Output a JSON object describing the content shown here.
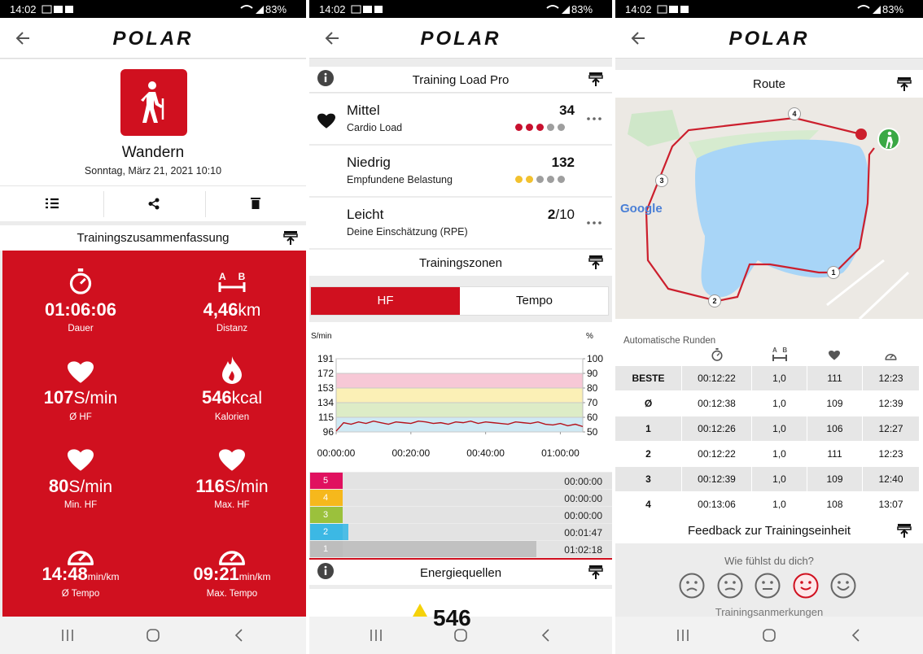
{
  "status_bar": {
    "time": "14:02",
    "battery": "83%"
  },
  "brand": "POLAR",
  "summary_screen": {
    "sport": "Wandern",
    "date": "Sonntag, März 21, 2021 10:10",
    "section": "Trainingszusammenfassung",
    "distance_icon": [
      "A",
      "B"
    ],
    "stats": [
      {
        "value": "01:06:06",
        "label": "Dauer"
      },
      {
        "value": "4,46",
        "unit": "km",
        "label": "Distanz"
      },
      {
        "value": "107",
        "unit": "S/min",
        "label": "Ø HF"
      },
      {
        "value": "546",
        "unit": "kcal",
        "label": "Kalorien"
      },
      {
        "value": "80",
        "unit": "S/min",
        "label": "Min. HF"
      },
      {
        "value": "116",
        "unit": "S/min",
        "label": "Max. HF"
      },
      {
        "value": "14:48",
        "unit": "min/km",
        "label": "Ø Tempo"
      },
      {
        "value": "09:21",
        "unit": "min/km",
        "label": "Max. Tempo"
      }
    ]
  },
  "load_screen": {
    "section": "Training Load Pro",
    "loads": [
      {
        "level": "Mittel",
        "name": "Cardio Load",
        "value": 34,
        "dots": [
          "#c8102e",
          "#c8102e",
          "#c8102e",
          "#9e9e9e",
          "#9e9e9e"
        ]
      },
      {
        "level": "Niedrig",
        "name": "Empfundene Belastung",
        "value": 132,
        "dots": [
          "#f2c12e",
          "#f2c12e",
          "#9e9e9e",
          "#9e9e9e",
          "#9e9e9e"
        ]
      },
      {
        "level": "Leicht",
        "name": "Deine Einschätzung (RPE)",
        "value": 2,
        "suffix": "/10"
      }
    ],
    "zones_section": "Trainingszonen",
    "tabs": [
      "HF",
      "Tempo"
    ],
    "chart_data": {
      "type": "line",
      "y_label": "S/min",
      "y2_label": "%",
      "ylim": [
        96,
        191
      ],
      "yticks": [
        96,
        115,
        134,
        153,
        172,
        191
      ],
      "y2lim": [
        50,
        100
      ],
      "y2ticks": [
        50,
        60,
        70,
        80,
        90,
        100
      ],
      "band_colors": [
        "#ffffff",
        "#cfe9f4",
        "#ddecc6",
        "#fbf0b6",
        "#f7c8d6"
      ],
      "xlim": [
        0,
        66
      ],
      "xticks": [
        {
          "value": 0,
          "label": "00:00:00"
        },
        {
          "value": 20,
          "label": "00:20:00"
        },
        {
          "value": 40,
          "label": "00:40:00"
        },
        {
          "value": 60,
          "label": "01:00:00"
        }
      ],
      "x": [
        0,
        2,
        4,
        6,
        8,
        10,
        12,
        14,
        16,
        18,
        20,
        22,
        24,
        26,
        28,
        30,
        32,
        34,
        36,
        38,
        40,
        42,
        44,
        46,
        48,
        50,
        52,
        54,
        56,
        58,
        60,
        62,
        64,
        66
      ],
      "series": [
        {
          "color": "#b5121b",
          "values": [
            97,
            108,
            106,
            109,
            107,
            110,
            108,
            106,
            109,
            108,
            107,
            110,
            109,
            107,
            108,
            106,
            109,
            108,
            110,
            107,
            109,
            108,
            107,
            106,
            109,
            108,
            107,
            109,
            106,
            105,
            107,
            104,
            106,
            103
          ]
        }
      ]
    },
    "zones": [
      {
        "zone": "5",
        "time": "00:00:00",
        "color": "#e0115f"
      },
      {
        "zone": "4",
        "time": "00:00:00",
        "color": "#f6b81c"
      },
      {
        "zone": "3",
        "time": "00:00:00",
        "color": "#9bc13c"
      },
      {
        "zone": "2",
        "time": "00:01:47",
        "color": "#3cb8e4"
      },
      {
        "zone": "1",
        "time": "01:02:18",
        "color": "#bdbdbd"
      }
    ],
    "energy_section": "Energiequellen",
    "energy_value": "546"
  },
  "route_screen": {
    "section": "Route",
    "lap_markers": [
      "1",
      "2",
      "3",
      "4"
    ],
    "map_credit": "Google",
    "laps_title": "Automatische Runden",
    "lap_header_icon": [
      "A",
      "B"
    ],
    "laps": [
      [
        "BESTE",
        "00:12:22",
        "1,0",
        "111",
        "12:23"
      ],
      [
        "Ø",
        "00:12:38",
        "1,0",
        "109",
        "12:39"
      ],
      [
        "1",
        "00:12:26",
        "1,0",
        "106",
        "12:27"
      ],
      [
        "2",
        "00:12:22",
        "1,0",
        "111",
        "12:23"
      ],
      [
        "3",
        "00:12:39",
        "1,0",
        "109",
        "12:40"
      ],
      [
        "4",
        "00:13:06",
        "1,0",
        "108",
        "13:07"
      ]
    ],
    "feedback": "Feedback zur Trainingseinheit",
    "question": "Wie fühlst du dich?",
    "notes": "Trainingsanmerkungen"
  }
}
